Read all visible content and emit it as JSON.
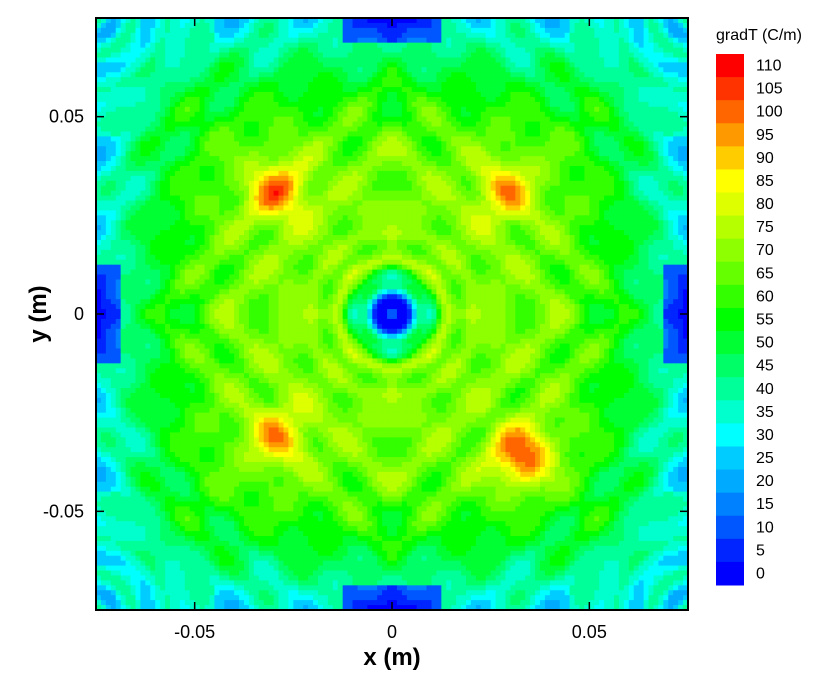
{
  "chart_data": {
    "type": "heatmap",
    "xlabel": "x (m)",
    "ylabel": "y (m)",
    "xlim": [
      -0.075,
      0.075
    ],
    "ylim": [
      -0.075,
      0.075
    ],
    "x_ticks": [
      -0.05,
      0,
      0.05
    ],
    "x_tick_labels": [
      "-0.05",
      "0",
      "0.05"
    ],
    "y_ticks": [
      0.05,
      0,
      -0.05
    ],
    "y_tick_labels": [
      "0.05",
      "0",
      "-0.05"
    ],
    "grid": false,
    "legend": {
      "title": "gradT (C/m)",
      "position": "right",
      "levels": [
        0,
        5,
        10,
        15,
        20,
        25,
        30,
        35,
        40,
        45,
        50,
        55,
        60,
        65,
        70,
        75,
        80,
        85,
        90,
        95,
        100,
        105,
        110
      ],
      "labels": [
        "0",
        "5",
        "10",
        "15",
        "20",
        "25",
        "30",
        "35",
        "40",
        "45",
        "50",
        "55",
        "60",
        "65",
        "70",
        "75",
        "80",
        "85",
        "90",
        "95",
        "100",
        "105",
        "110"
      ],
      "colors": [
        "#0000ff",
        "#0025ff",
        "#0056ff",
        "#0081ff",
        "#00aaff",
        "#00ccff",
        "#00ffff",
        "#00ffcc",
        "#00ff99",
        "#00ff66",
        "#00ff33",
        "#00ff00",
        "#33ff00",
        "#66ff00",
        "#8dff00",
        "#b5ff00",
        "#ddff00",
        "#ffff00",
        "#ffcc00",
        "#ff9900",
        "#ff6600",
        "#ff3300",
        "#ff0000"
      ]
    },
    "hotspots": [
      {
        "x": 0.033,
        "y": -0.036,
        "value": 110
      },
      {
        "x": -0.029,
        "y": 0.031,
        "value": 105
      },
      {
        "x": 0.029,
        "y": 0.031,
        "value": 100
      },
      {
        "x": -0.029,
        "y": -0.031,
        "value": 100
      }
    ],
    "minimum": {
      "x": 0,
      "y": 0,
      "value": 0
    }
  }
}
